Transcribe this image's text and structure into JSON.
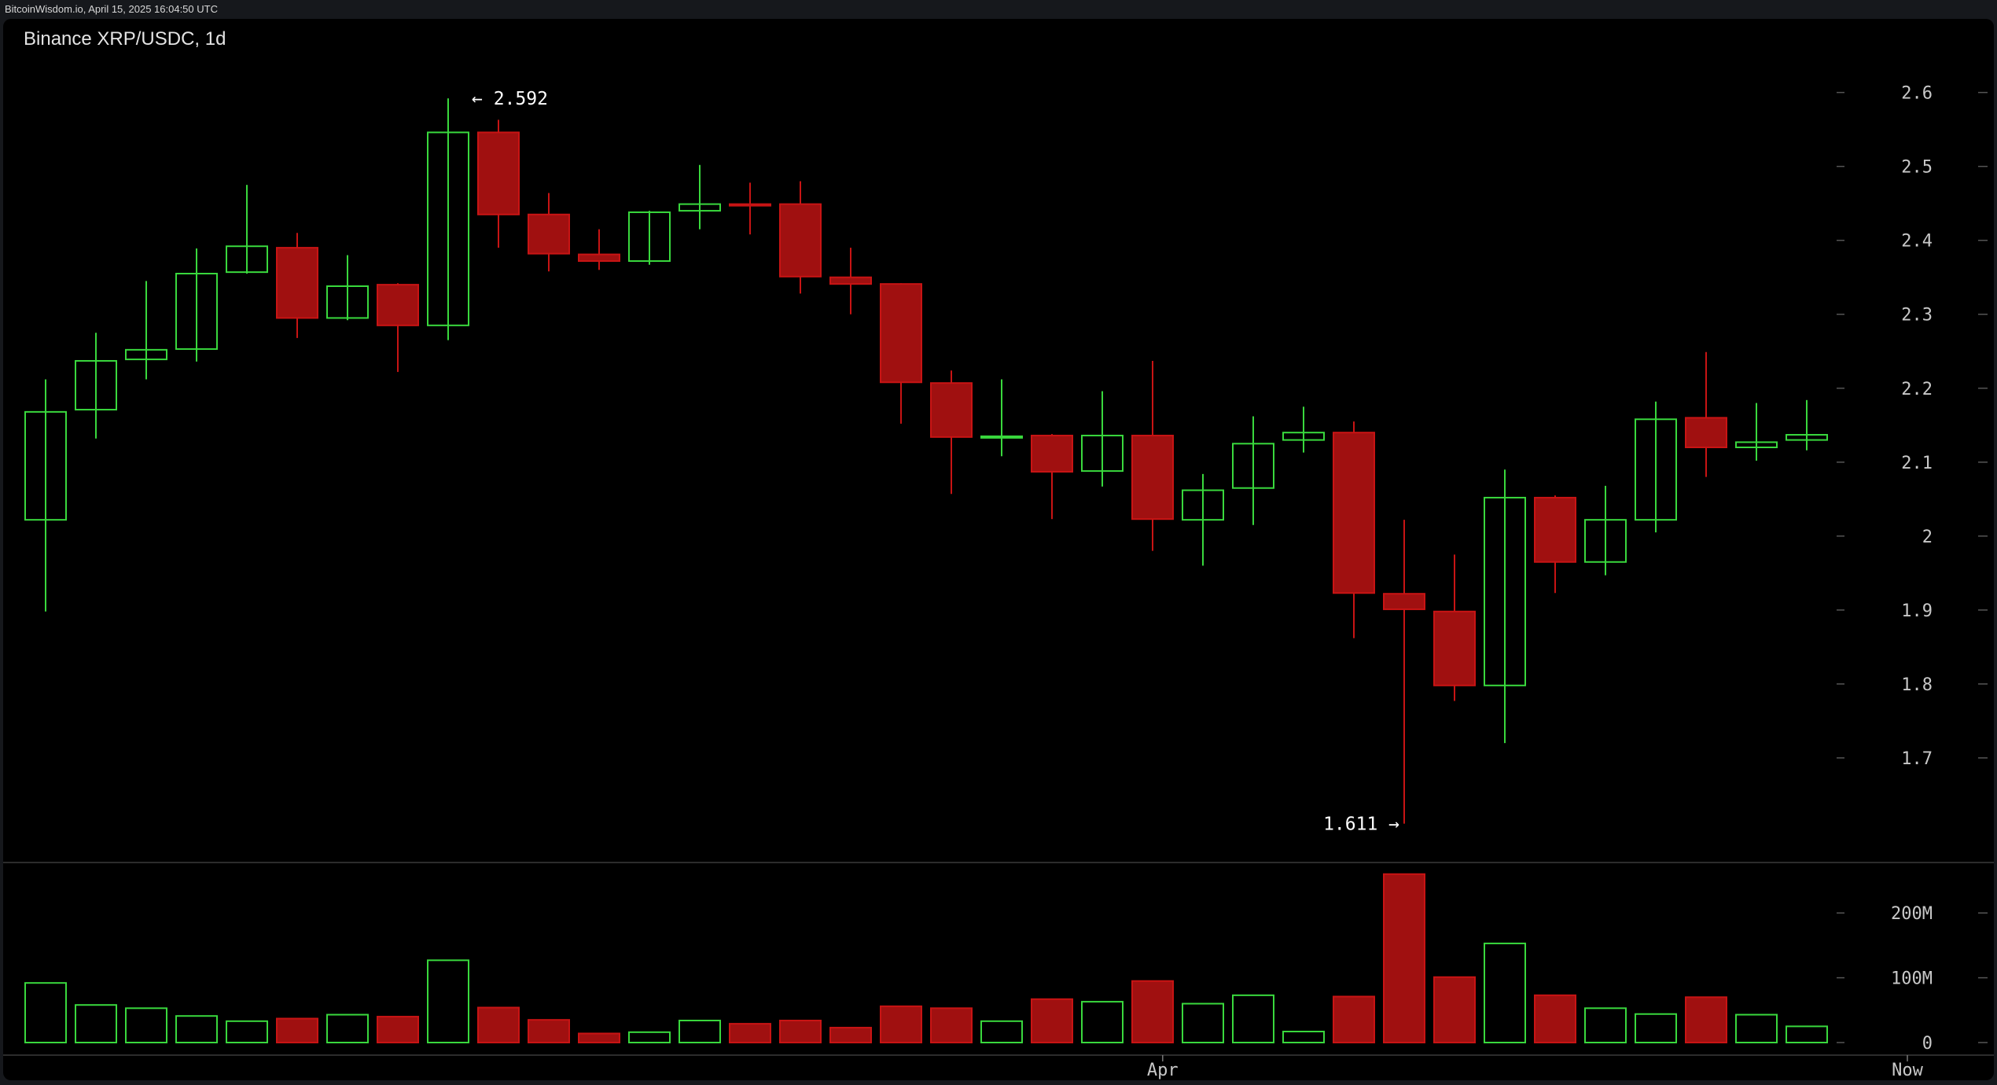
{
  "header": {
    "source": "BitcoinWisdom.io, April 15, 2025 16:04:50 UTC",
    "chart_title": "Binance XRP/USDC, 1d"
  },
  "colors": {
    "up": "#39d83d",
    "down": "#a01010",
    "down_stroke": "#c81414",
    "background": "#000000",
    "grid": "#3a3a3a"
  },
  "chart_data": {
    "type": "candlestick",
    "title": "Binance XRP/USDC, 1d",
    "interval": "1d",
    "price_axis": {
      "ticks": [
        1.7,
        1.8,
        1.9,
        2,
        2.1,
        2.2,
        2.3,
        2.4,
        2.5,
        2.6
      ],
      "tick_labels": [
        "1.7",
        "1.8",
        "1.9",
        "2",
        "2.1",
        "2.2",
        "2.3",
        "2.4",
        "2.5",
        "2.6"
      ],
      "ylim": [
        1.6,
        2.64
      ]
    },
    "volume_axis": {
      "ticks": [
        0,
        100,
        200
      ],
      "tick_labels": [
        "0",
        "100M",
        "200M"
      ],
      "unit": "M",
      "ylim": [
        0,
        270
      ]
    },
    "x_axis": {
      "labels": [
        {
          "index": 22.2,
          "text": "Apr"
        },
        {
          "index": 37,
          "text": "Now"
        }
      ]
    },
    "annotations": {
      "high": {
        "index": 8,
        "value": 2.592,
        "text": "← 2.592"
      },
      "low": {
        "index": 27,
        "value": 1.611,
        "text": "1.611 →"
      }
    },
    "candles": [
      {
        "o": 2.022,
        "h": 2.212,
        "l": 1.898,
        "c": 2.168,
        "v": 92
      },
      {
        "o": 2.171,
        "h": 2.275,
        "l": 2.132,
        "c": 2.237,
        "v": 58
      },
      {
        "o": 2.239,
        "h": 2.345,
        "l": 2.212,
        "c": 2.252,
        "v": 53
      },
      {
        "o": 2.253,
        "h": 2.389,
        "l": 2.236,
        "c": 2.355,
        "v": 41
      },
      {
        "o": 2.357,
        "h": 2.475,
        "l": 2.355,
        "c": 2.392,
        "v": 33
      },
      {
        "o": 2.39,
        "h": 2.41,
        "l": 2.268,
        "c": 2.295,
        "v": 37
      },
      {
        "o": 2.295,
        "h": 2.38,
        "l": 2.292,
        "c": 2.338,
        "v": 43
      },
      {
        "o": 2.34,
        "h": 2.342,
        "l": 2.222,
        "c": 2.285,
        "v": 40
      },
      {
        "o": 2.285,
        "h": 2.592,
        "l": 2.265,
        "c": 2.546,
        "v": 127
      },
      {
        "o": 2.546,
        "h": 2.563,
        "l": 2.39,
        "c": 2.435,
        "v": 54
      },
      {
        "o": 2.435,
        "h": 2.464,
        "l": 2.358,
        "c": 2.382,
        "v": 35
      },
      {
        "o": 2.381,
        "h": 2.415,
        "l": 2.36,
        "c": 2.372,
        "v": 14
      },
      {
        "o": 2.372,
        "h": 2.44,
        "l": 2.367,
        "c": 2.438,
        "v": 16
      },
      {
        "o": 2.44,
        "h": 2.502,
        "l": 2.415,
        "c": 2.449,
        "v": 34
      },
      {
        "o": 2.449,
        "h": 2.478,
        "l": 2.408,
        "c": 2.447,
        "v": 29
      },
      {
        "o": 2.449,
        "h": 2.48,
        "l": 2.328,
        "c": 2.351,
        "v": 34
      },
      {
        "o": 2.35,
        "h": 2.39,
        "l": 2.3,
        "c": 2.341,
        "v": 23
      },
      {
        "o": 2.341,
        "h": 2.342,
        "l": 2.152,
        "c": 2.208,
        "v": 56
      },
      {
        "o": 2.207,
        "h": 2.224,
        "l": 2.057,
        "c": 2.134,
        "v": 53
      },
      {
        "o": 2.134,
        "h": 2.212,
        "l": 2.108,
        "c": 2.135,
        "v": 33
      },
      {
        "o": 2.136,
        "h": 2.138,
        "l": 2.023,
        "c": 2.087,
        "v": 67
      },
      {
        "o": 2.088,
        "h": 2.196,
        "l": 2.067,
        "c": 2.136,
        "v": 63
      },
      {
        "o": 2.136,
        "h": 2.237,
        "l": 1.98,
        "c": 2.023,
        "v": 95
      },
      {
        "o": 2.022,
        "h": 2.084,
        "l": 1.96,
        "c": 2.062,
        "v": 60
      },
      {
        "o": 2.065,
        "h": 2.162,
        "l": 2.015,
        "c": 2.125,
        "v": 73
      },
      {
        "o": 2.13,
        "h": 2.175,
        "l": 2.113,
        "c": 2.14,
        "v": 17
      },
      {
        "o": 2.14,
        "h": 2.155,
        "l": 1.862,
        "c": 1.923,
        "v": 71
      },
      {
        "o": 1.922,
        "h": 2.022,
        "l": 1.611,
        "c": 1.901,
        "v": 260
      },
      {
        "o": 1.898,
        "h": 1.975,
        "l": 1.777,
        "c": 1.798,
        "v": 101
      },
      {
        "o": 1.798,
        "h": 2.09,
        "l": 1.72,
        "c": 2.052,
        "v": 153
      },
      {
        "o": 2.052,
        "h": 2.055,
        "l": 1.923,
        "c": 1.965,
        "v": 73
      },
      {
        "o": 1.965,
        "h": 2.068,
        "l": 1.947,
        "c": 2.022,
        "v": 53
      },
      {
        "o": 2.022,
        "h": 2.182,
        "l": 2.005,
        "c": 2.158,
        "v": 44
      },
      {
        "o": 2.16,
        "h": 2.249,
        "l": 2.08,
        "c": 2.12,
        "v": 70
      },
      {
        "o": 2.12,
        "h": 2.18,
        "l": 2.102,
        "c": 2.127,
        "v": 43
      },
      {
        "o": 2.13,
        "h": 2.184,
        "l": 2.116,
        "c": 2.137,
        "v": 25
      }
    ]
  }
}
